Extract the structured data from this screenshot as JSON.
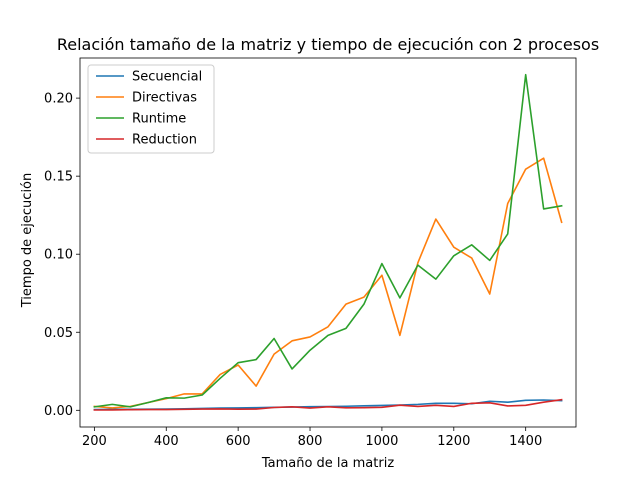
{
  "chart_data": {
    "type": "line",
    "title": "Relación tamaño de la matriz y tiempo de ejecución con 2 procesos",
    "xlabel": "Tamaño de la matriz",
    "ylabel": "Tiempo de ejecución",
    "xlim": [
      160,
      1540
    ],
    "ylim": [
      -0.0107,
      0.2257
    ],
    "xticks": [
      200,
      400,
      600,
      800,
      1000,
      1200,
      1400
    ],
    "xtick_labels": [
      "200",
      "400",
      "600",
      "800",
      "1000",
      "1200",
      "1400"
    ],
    "yticks": [
      0.0,
      0.05,
      0.1,
      0.15,
      0.2
    ],
    "ytick_labels": [
      "0.00",
      "0.05",
      "0.10",
      "0.15",
      "0.20"
    ],
    "grid": false,
    "legend_position": "top-left",
    "x": [
      200,
      250,
      300,
      350,
      400,
      450,
      500,
      550,
      600,
      650,
      700,
      750,
      800,
      850,
      900,
      950,
      1000,
      1050,
      1100,
      1150,
      1200,
      1250,
      1300,
      1350,
      1400,
      1450,
      1500
    ],
    "series": [
      {
        "name": "Secuencial",
        "color": "#1f77b4",
        "values": [
          0.0005,
          0.0006,
          0.0006,
          0.0007,
          0.0008,
          0.001,
          0.0012,
          0.0014,
          0.0015,
          0.0017,
          0.0019,
          0.0021,
          0.0023,
          0.0024,
          0.0026,
          0.0029,
          0.0031,
          0.0034,
          0.0038,
          0.0045,
          0.0045,
          0.0042,
          0.0058,
          0.0052,
          0.0064,
          0.0066,
          0.0062
        ]
      },
      {
        "name": "Directivas",
        "color": "#ff7f0e",
        "values": [
          0.0025,
          0.0015,
          0.0025,
          0.005,
          0.0075,
          0.0105,
          0.0105,
          0.023,
          0.029,
          0.0155,
          0.036,
          0.0445,
          0.047,
          0.0535,
          0.068,
          0.0725,
          0.0865,
          0.048,
          0.0945,
          0.1225,
          0.1045,
          0.0975,
          0.0745,
          0.1325,
          0.1545,
          0.1615,
          0.1205
        ]
      },
      {
        "name": "Runtime",
        "color": "#2ca02c",
        "values": [
          0.0022,
          0.0038,
          0.0022,
          0.005,
          0.008,
          0.0078,
          0.0098,
          0.0205,
          0.0305,
          0.0325,
          0.046,
          0.0265,
          0.0385,
          0.048,
          0.0525,
          0.068,
          0.094,
          0.072,
          0.093,
          0.084,
          0.099,
          0.106,
          0.096,
          0.113,
          0.215,
          0.129,
          0.131
        ]
      },
      {
        "name": "Reduction",
        "color": "#d62728",
        "values": [
          0.0002,
          0.0002,
          0.0004,
          0.0005,
          0.0005,
          0.0006,
          0.0008,
          0.0009,
          0.0007,
          0.0008,
          0.0018,
          0.0022,
          0.0014,
          0.0022,
          0.0016,
          0.0017,
          0.0019,
          0.0033,
          0.0025,
          0.0032,
          0.0025,
          0.0045,
          0.0048,
          0.0028,
          0.0032,
          0.0052,
          0.0068
        ]
      }
    ]
  }
}
